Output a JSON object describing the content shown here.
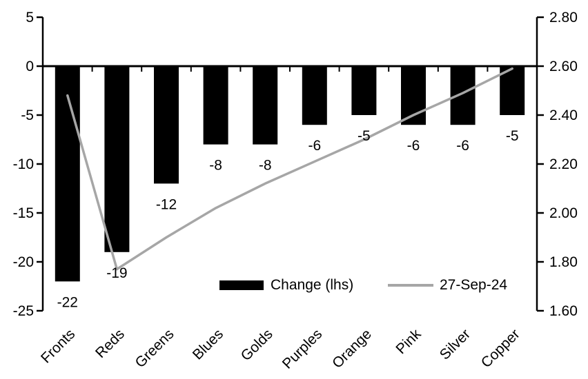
{
  "chart_data": {
    "type": "combo",
    "title": "",
    "categories": [
      "Fronts",
      "Reds",
      "Greens",
      "Blues",
      "Golds",
      "Purples",
      "Orange",
      "Pink",
      "Silver",
      "Copper"
    ],
    "series": [
      {
        "name": "Change (lhs)",
        "type": "bar",
        "axis": "left",
        "color": "#000000",
        "values": [
          -22,
          -19,
          -12,
          -8,
          -8,
          -6,
          -5,
          -6,
          -6,
          -5
        ],
        "data_labels": [
          "-22",
          "-19",
          "-12",
          "-8",
          "-8",
          "-6",
          "-5",
          "-6",
          "-6",
          "-5"
        ]
      },
      {
        "name": "27-Sep-24",
        "type": "line",
        "axis": "right",
        "color": "#a6a6a6",
        "values": [
          2.48,
          1.77,
          1.9,
          2.02,
          2.12,
          2.21,
          2.3,
          2.4,
          2.49,
          2.59
        ]
      }
    ],
    "left_axis": {
      "min": -25,
      "max": 5,
      "step": 5,
      "ticks": [
        "5",
        "0",
        "-5",
        "-10",
        "-15",
        "-20",
        "-25"
      ]
    },
    "right_axis": {
      "min": 1.6,
      "max": 2.8,
      "step": 0.2,
      "ticks": [
        "2.80",
        "2.60",
        "2.40",
        "2.20",
        "2.00",
        "1.80",
        "1.60"
      ]
    },
    "legend": {
      "position": "inside-bottom",
      "items": [
        {
          "label": "Change (lhs)",
          "swatch": "bar"
        },
        {
          "label": "27-Sep-24",
          "swatch": "line"
        }
      ]
    },
    "grid": false
  },
  "colors": {
    "bar": "#000000",
    "line": "#a6a6a6",
    "axis": "#000000",
    "text": "#000000",
    "background": "#ffffff"
  }
}
